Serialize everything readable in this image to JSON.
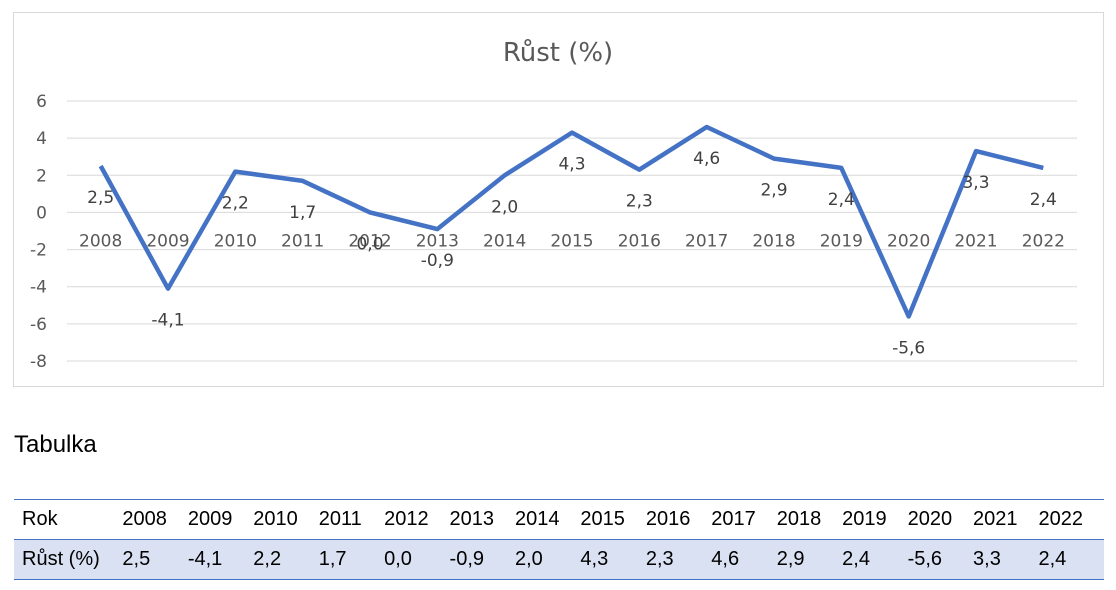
{
  "chart_data": {
    "type": "line",
    "title": "Růst (%)",
    "categories": [
      "2008",
      "2009",
      "2010",
      "2011",
      "2012",
      "2013",
      "2014",
      "2015",
      "2016",
      "2017",
      "2018",
      "2019",
      "2020",
      "2021",
      "2022"
    ],
    "series": [
      {
        "values": [
          2.5,
          -4.1,
          2.2,
          1.7,
          0.0,
          -0.9,
          2.0,
          4.3,
          2.3,
          4.6,
          2.9,
          2.4,
          -5.6,
          3.3,
          2.4
        ]
      }
    ],
    "data_labels": [
      "2,5",
      "-4,1",
      "2,2",
      "1,7",
      "0,0",
      "-0,9",
      "2,0",
      "4,3",
      "2,3",
      "4,6",
      "2,9",
      "2,4",
      "-5,6",
      "3,3",
      "2,4"
    ],
    "ylim": [
      -8,
      6
    ],
    "yticks": [
      6,
      4,
      2,
      0,
      -2,
      -4,
      -6,
      -8
    ],
    "grid": true,
    "line_color": "#4472c4"
  },
  "table": {
    "heading": "Tabulka",
    "rows": [
      {
        "header": "Rok",
        "cells": [
          "2008",
          "2009",
          "2010",
          "2011",
          "2012",
          "2013",
          "2014",
          "2015",
          "2016",
          "2017",
          "2018",
          "2019",
          "2020",
          "2021",
          "2022"
        ]
      },
      {
        "header": "Růst (%)",
        "cells": [
          "2,5",
          "-4,1",
          "2,2",
          "1,7",
          "0,0",
          "-0,9",
          "2,0",
          "4,3",
          "2,3",
          "4,6",
          "2,9",
          "2,4",
          "-5,6",
          "3,3",
          "2,4"
        ]
      }
    ]
  }
}
